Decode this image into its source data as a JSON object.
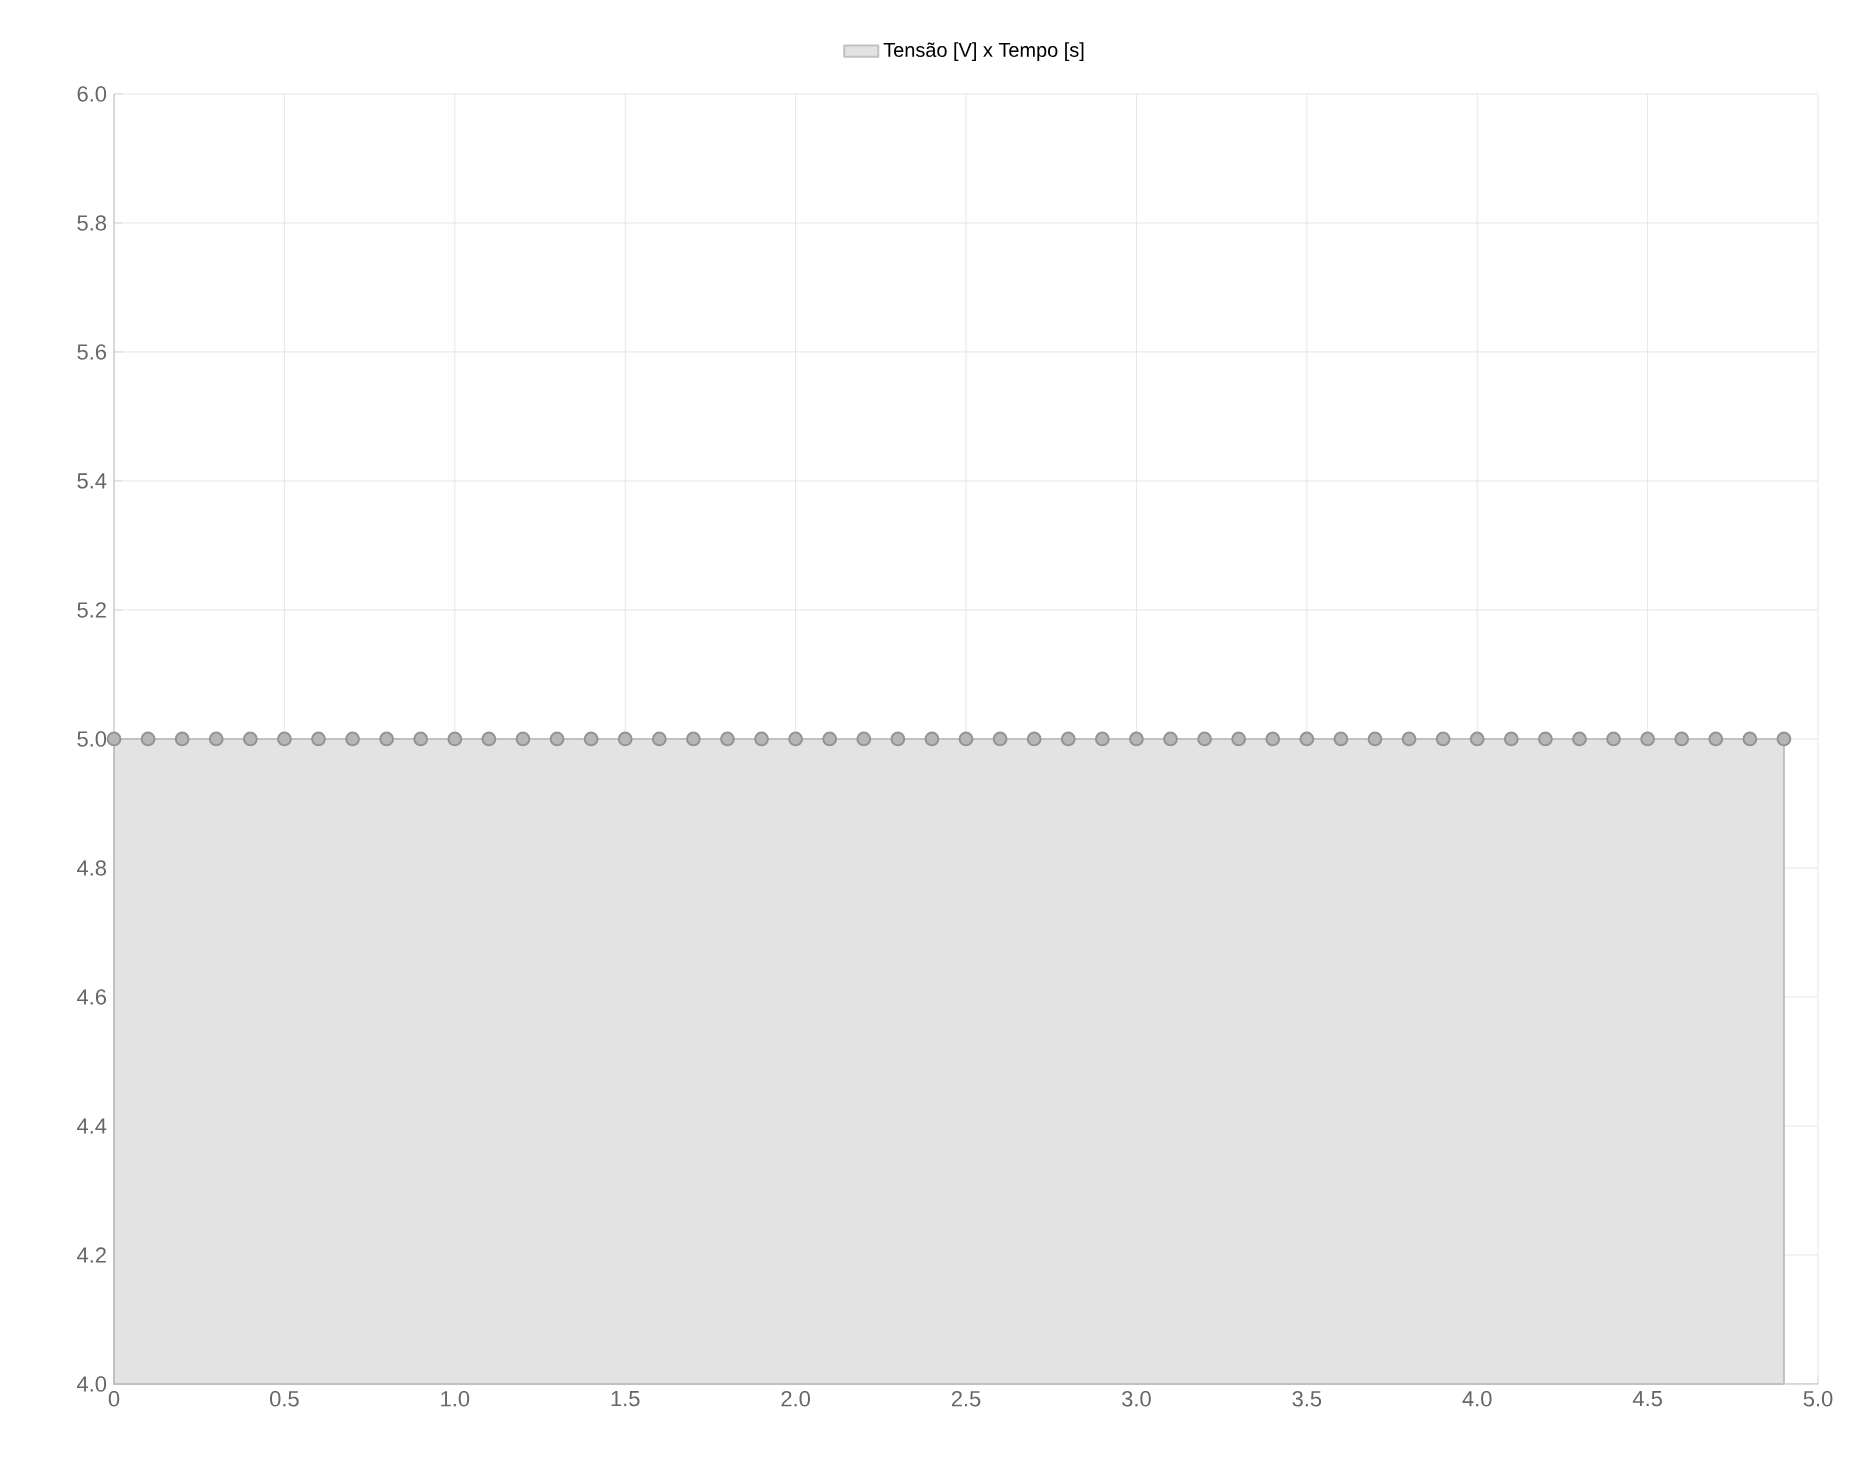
{
  "chart_data": {
    "type": "area",
    "x": [
      0,
      0.1,
      0.2,
      0.3,
      0.4,
      0.5,
      0.6,
      0.7,
      0.8,
      0.9,
      1.0,
      1.1,
      1.2,
      1.3,
      1.4,
      1.5,
      1.6,
      1.7,
      1.8,
      1.9,
      2.0,
      2.1,
      2.2,
      2.3,
      2.4,
      2.5,
      2.6,
      2.7,
      2.8,
      2.9,
      3.0,
      3.1,
      3.2,
      3.3,
      3.4,
      3.5,
      3.6,
      3.7,
      3.8,
      3.9,
      4.0,
      4.1,
      4.2,
      4.3,
      4.4,
      4.5,
      4.6,
      4.7,
      4.8,
      4.9
    ],
    "series": [
      {
        "name": "Tensão [V] x Tempo [s]",
        "color": "#e3e3e3",
        "values": [
          5,
          5,
          5,
          5,
          5,
          5,
          5,
          5,
          5,
          5,
          5,
          5,
          5,
          5,
          5,
          5,
          5,
          5,
          5,
          5,
          5,
          5,
          5,
          5,
          5,
          5,
          5,
          5,
          5,
          5,
          5,
          5,
          5,
          5,
          5,
          5,
          5,
          5,
          5,
          5,
          5,
          5,
          5,
          5,
          5,
          5,
          5,
          5,
          5,
          5
        ]
      }
    ],
    "xlim": [
      0,
      5.0
    ],
    "xticks": [
      0,
      0.5,
      {
        "value": 1,
        "label": "1.0"
      },
      1.5,
      {
        "value": 2,
        "label": "2.0"
      },
      2.5,
      {
        "value": 3,
        "label": "3.0"
      },
      3.5,
      {
        "value": 4,
        "label": "4.0"
      },
      4.5,
      {
        "value": 5,
        "label": "5.0"
      }
    ],
    "ylim": [
      4.0,
      6.0
    ],
    "yticks": [
      {
        "value": 4,
        "label": "4.0"
      },
      4.2,
      4.4,
      4.6,
      4.8,
      {
        "value": 5,
        "label": "5.0"
      },
      5.2,
      5.4,
      5.6,
      5.8,
      {
        "value": 6,
        "label": "6.0"
      }
    ],
    "grid": true,
    "legend": "top",
    "marker": "circle"
  }
}
